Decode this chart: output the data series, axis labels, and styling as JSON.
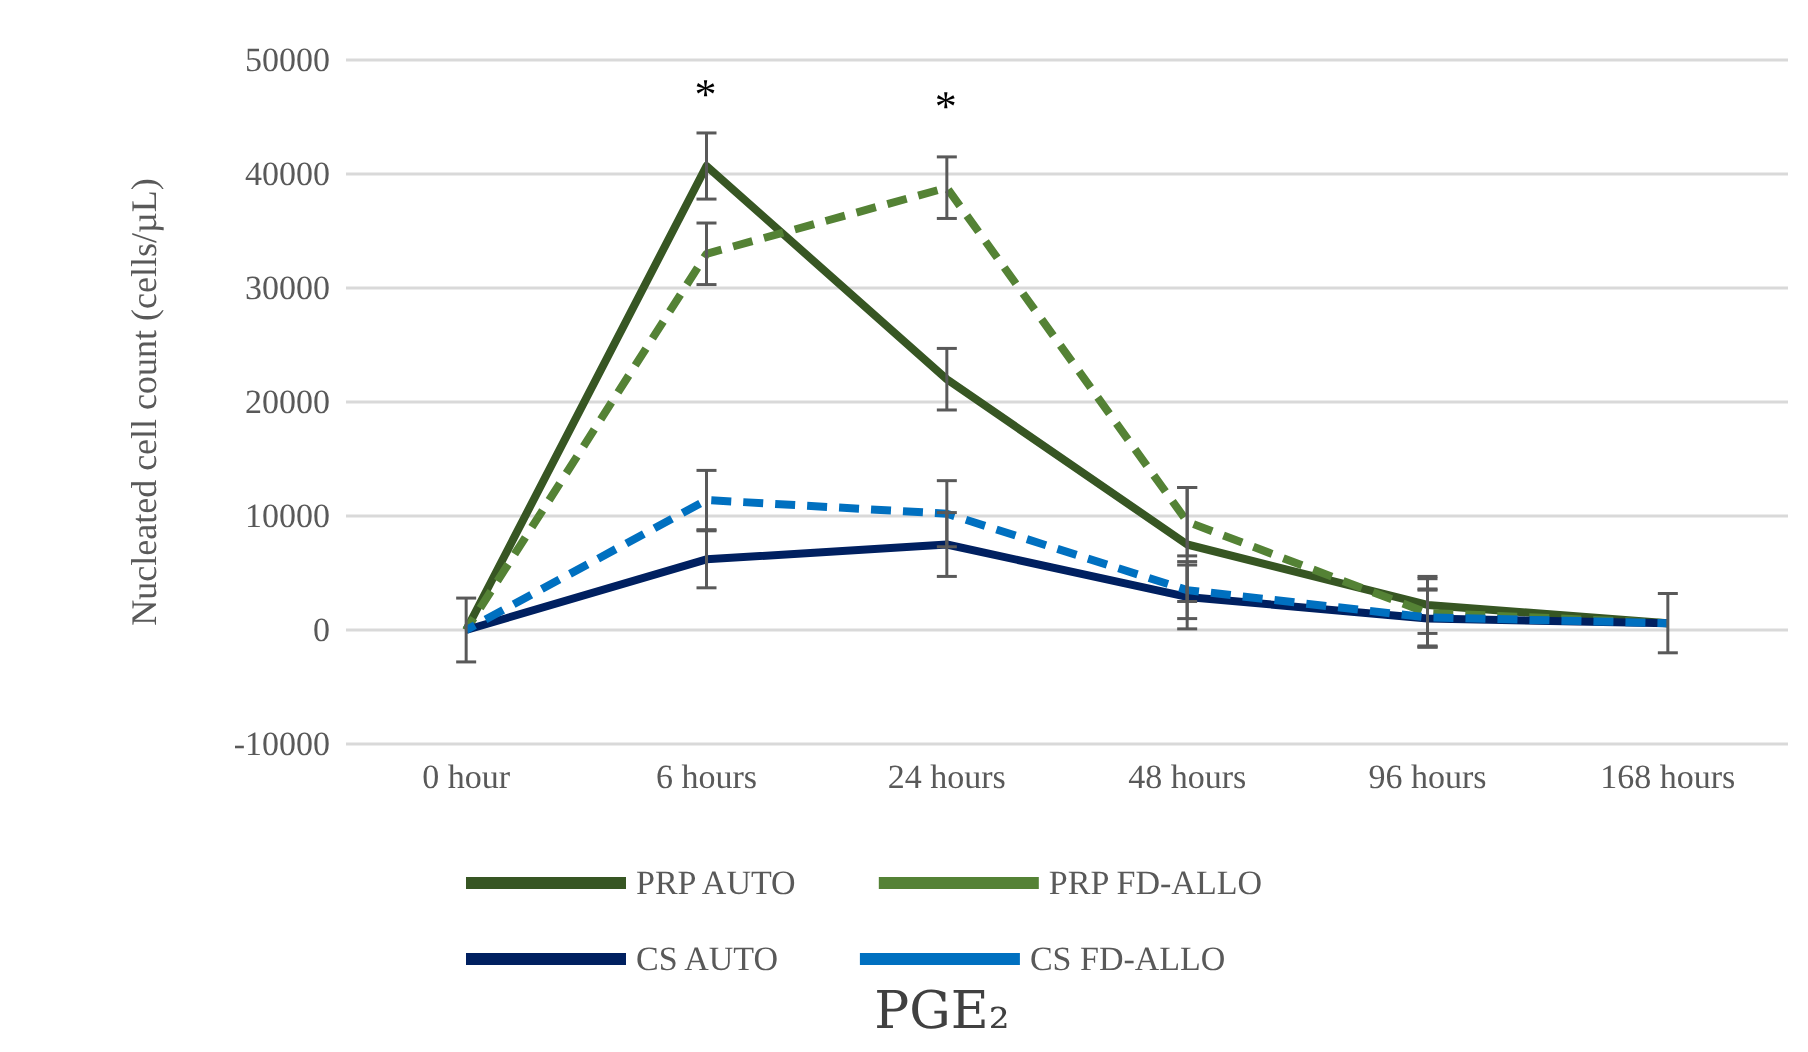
{
  "chart_data": {
    "type": "line",
    "title": "PGE₂",
    "ylabel": "Nucleated cell count (cells/µL)",
    "categories": [
      "0 hour",
      "6 hours",
      "24 hours",
      "48 hours",
      "96 hours",
      "168 hours"
    ],
    "series": [
      {
        "name": "PRP AUTO",
        "color": "#375623",
        "line_style": "solid",
        "values": [
          0,
          40700,
          22000,
          7500,
          2200,
          600
        ],
        "errors": [
          2800,
          2900,
          2700,
          5000,
          2500,
          2600
        ]
      },
      {
        "name": "PRP FD-ALLO",
        "color": "#548235",
        "line_style": "dashed",
        "values": [
          0,
          33000,
          38800,
          9500,
          1500,
          600
        ],
        "errors": [
          null,
          2700,
          2700,
          3000,
          3000,
          null
        ]
      },
      {
        "name": "CS AUTO",
        "color": "#002060",
        "line_style": "solid",
        "values": [
          0,
          6200,
          7500,
          2900,
          1000,
          600
        ],
        "errors": [
          null,
          2500,
          2800,
          2800,
          2500,
          null
        ]
      },
      {
        "name": "CS FD-ALLO",
        "color": "#0070c0",
        "line_style": "dashed",
        "values": [
          0,
          11400,
          10200,
          3500,
          1100,
          600
        ],
        "errors": [
          null,
          2600,
          2900,
          2500,
          2500,
          null
        ]
      }
    ],
    "annotations": [
      "*",
      "*"
    ],
    "ylim": [
      -10000,
      50000
    ],
    "yticks": [
      -10000,
      0,
      10000,
      20000,
      30000,
      40000,
      50000
    ],
    "grid": "y",
    "legend": "bottom",
    "marker": "none"
  }
}
